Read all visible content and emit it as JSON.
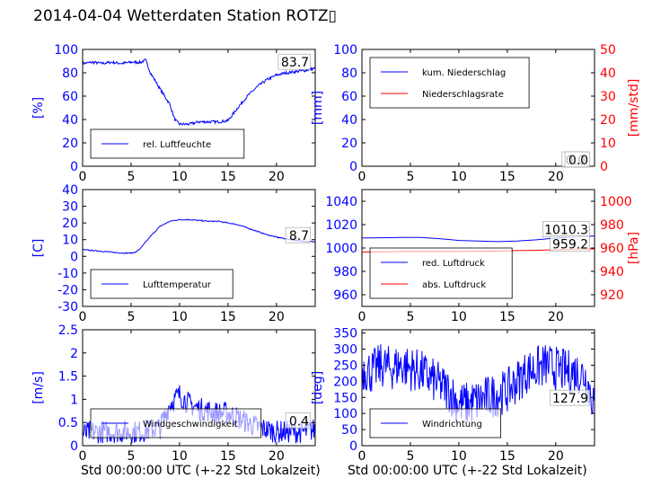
{
  "title": "2014-04-04 Wetterdaten Station ROTZ▯",
  "xlabel": "Std 00:00:00 UTC (+-22 Std Lokalzeit)",
  "colors": {
    "primary": "#0000ff",
    "secondary": "#ff0000",
    "axis": "#000000"
  },
  "chart_data": [
    {
      "type": "line",
      "ylabel": "[%]",
      "xlim": [
        0,
        24
      ],
      "ylim": [
        0,
        100
      ],
      "xticks": [
        0,
        5,
        10,
        15,
        20
      ],
      "yticks": [
        0,
        20,
        40,
        60,
        80,
        100
      ],
      "legend_position": "lower-left",
      "annotations": [
        {
          "text": "83.7",
          "x": 23.5,
          "y": 83.7
        }
      ],
      "series": [
        {
          "name": "rel. Luftfeuchte",
          "color": "#0000ff",
          "noise": 1.2,
          "x": [
            0,
            1,
            2,
            3,
            4,
            5,
            6,
            6.5,
            7,
            8,
            9,
            9.5,
            10,
            11,
            12,
            13,
            14,
            15,
            16,
            17,
            18,
            19,
            20,
            21,
            22,
            23,
            24
          ],
          "y": [
            88,
            89,
            88,
            89,
            88,
            89,
            89,
            91,
            80,
            66,
            53,
            40,
            36,
            36,
            38,
            38,
            38,
            39,
            50,
            60,
            68,
            74,
            78,
            80,
            81,
            82,
            84
          ]
        }
      ]
    },
    {
      "type": "line",
      "ylabel": "[mm]",
      "ylabel_right": "[mm/std]",
      "xlim": [
        0,
        24
      ],
      "ylim": [
        0,
        100
      ],
      "ylim_right": [
        0,
        50
      ],
      "xticks": [
        0,
        5,
        10,
        15,
        20
      ],
      "yticks": [
        0,
        20,
        40,
        60,
        80,
        100
      ],
      "yticks_right": [
        0,
        10,
        20,
        30,
        40,
        50
      ],
      "legend_position": "upper-left",
      "annotations": [
        {
          "text": "0.0",
          "x": 23.2,
          "y": 0
        },
        {
          "text": "0.0",
          "x": 23.5,
          "y": 0
        }
      ],
      "series": [
        {
          "name": "kum. Niederschlag",
          "color": "#0000ff",
          "x": [
            0,
            24
          ],
          "y": [
            0,
            0
          ]
        },
        {
          "name": "Niederschlagsrate",
          "color": "#ff0000",
          "axis": "right",
          "x": [
            0,
            24
          ],
          "y": [
            0,
            0
          ]
        }
      ]
    },
    {
      "type": "line",
      "ylabel": "[C]",
      "xlim": [
        0,
        24
      ],
      "ylim": [
        -30,
        40
      ],
      "xticks": [
        0,
        5,
        10,
        15,
        20
      ],
      "yticks": [
        -30,
        -20,
        -10,
        0,
        10,
        20,
        30,
        40
      ],
      "legend_position": "lower-left",
      "annotations": [
        {
          "text": "8.7",
          "x": 23.5,
          "y": 8.7
        }
      ],
      "series": [
        {
          "name": "Lufttemperatur",
          "color": "#0000ff",
          "noise": 0.3,
          "x": [
            0,
            1,
            2,
            3,
            4,
            5,
            5.5,
            6,
            7,
            8,
            9,
            10,
            11,
            12,
            13,
            14,
            15,
            16,
            17,
            18,
            19,
            20,
            21,
            22,
            23,
            24
          ],
          "y": [
            4,
            3.5,
            3,
            2.5,
            2,
            2,
            2.5,
            5,
            12,
            18,
            21,
            22,
            22,
            21.5,
            21,
            21,
            20,
            19,
            17,
            15,
            13,
            11.5,
            10.5,
            9.5,
            9,
            8.7
          ]
        }
      ]
    },
    {
      "type": "line",
      "ylabel_right": "[hPa]",
      "xlim": [
        0,
        24
      ],
      "ylim": [
        950,
        1050
      ],
      "ylim_right": [
        910,
        1010
      ],
      "xticks": [
        0,
        5,
        10,
        15,
        20
      ],
      "yticks": [
        960,
        980,
        1000,
        1020,
        1040
      ],
      "yticks_right": [
        920,
        940,
        960,
        980,
        1000
      ],
      "legend_position": "lower-left",
      "annotations": [
        {
          "text": "1010.3",
          "x": 23.5,
          "y": 1010.3
        },
        {
          "text": "959.2",
          "x": 23.5,
          "y": 998
        }
      ],
      "series": [
        {
          "name": "red. Luftdruck",
          "color": "#0000ff",
          "x": [
            0,
            2,
            4,
            6,
            8,
            10,
            12,
            14,
            16,
            18,
            20,
            22,
            24
          ],
          "y": [
            1008.5,
            1008.8,
            1009,
            1009,
            1008,
            1006.5,
            1006,
            1005.5,
            1006,
            1007,
            1008.5,
            1009.5,
            1010.3
          ]
        },
        {
          "name": "abs. Luftdruck",
          "color": "#ff0000",
          "axis": "right",
          "x": [
            0,
            2,
            4,
            6,
            8,
            10,
            12,
            14,
            16,
            18,
            20,
            22,
            24
          ],
          "y": [
            956.5,
            956.7,
            957,
            957,
            957,
            957,
            957.2,
            957.4,
            957.8,
            958,
            958.5,
            959,
            959.2
          ]
        }
      ]
    },
    {
      "type": "line",
      "ylabel": "[m/s]",
      "xlim": [
        0,
        24
      ],
      "ylim": [
        0,
        2.5
      ],
      "xticks": [
        0,
        5,
        10,
        15,
        20
      ],
      "yticks": [
        0.0,
        0.5,
        1.0,
        1.5,
        2.0,
        2.5
      ],
      "legend_position": "lower-left",
      "annotations": [
        {
          "text": "0.4",
          "x": 23.5,
          "y": 0.4
        }
      ],
      "series": [
        {
          "name": "Windgeschwindigkeit",
          "color": "#0000ff",
          "noise": 0.25,
          "x": [
            0,
            1,
            2,
            3,
            4,
            5,
            6,
            7,
            8,
            9,
            10,
            11,
            12,
            13,
            14,
            15,
            16,
            17,
            18,
            19,
            20,
            21,
            22,
            23,
            24
          ],
          "y": [
            0.25,
            0.3,
            0.3,
            0.3,
            0.3,
            0.3,
            0.3,
            0.35,
            0.4,
            0.9,
            1.1,
            0.9,
            0.8,
            0.75,
            0.7,
            0.7,
            0.6,
            0.5,
            0.4,
            0.35,
            0.3,
            0.3,
            0.3,
            0.3,
            0.35
          ]
        }
      ]
    },
    {
      "type": "line",
      "ylabel": "[deg]",
      "xlim": [
        0,
        24
      ],
      "ylim": [
        0,
        360
      ],
      "xticks": [
        0,
        5,
        10,
        15,
        20
      ],
      "yticks": [
        0,
        50,
        100,
        150,
        200,
        250,
        300,
        350
      ],
      "legend_position": "lower-left",
      "annotations": [
        {
          "text": "127.9",
          "x": 23.5,
          "y": 127.9
        }
      ],
      "series": [
        {
          "name": "Windrichtung",
          "color": "#0000ff",
          "noise": 70,
          "x": [
            0,
            1,
            2,
            3,
            4,
            5,
            6,
            7,
            8,
            9,
            10,
            11,
            12,
            13,
            14,
            15,
            16,
            17,
            18,
            19,
            20,
            21,
            22,
            23,
            24
          ],
          "y": [
            240,
            230,
            250,
            240,
            250,
            240,
            230,
            210,
            190,
            170,
            130,
            130,
            140,
            150,
            160,
            170,
            200,
            230,
            240,
            250,
            240,
            230,
            230,
            220,
            130
          ]
        }
      ]
    }
  ]
}
